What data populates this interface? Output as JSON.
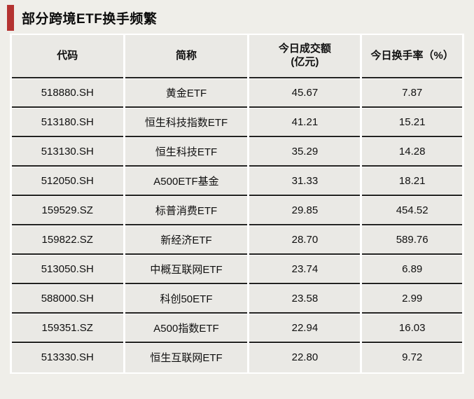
{
  "title": "部分跨境ETF换手频繁",
  "colors": {
    "accent_bar": "#b43331",
    "page_bg": "#efeee9",
    "cell_bg": "#eae9e5",
    "row_rule": "#232321",
    "gap": "#ffffff"
  },
  "table": {
    "columns": [
      {
        "label": "代码",
        "sub": ""
      },
      {
        "label": "简称",
        "sub": ""
      },
      {
        "label": "今日成交额",
        "sub": "(亿元)"
      },
      {
        "label": "今日换手率（%）",
        "sub": ""
      }
    ],
    "rows": [
      {
        "code": "518880.SH",
        "name": "黄金ETF",
        "turnover": "45.67",
        "rate": "7.87"
      },
      {
        "code": "513180.SH",
        "name": "恒生科技指数ETF",
        "turnover": "41.21",
        "rate": "15.21"
      },
      {
        "code": "513130.SH",
        "name": "恒生科技ETF",
        "turnover": "35.29",
        "rate": "14.28"
      },
      {
        "code": "512050.SH",
        "name": "A500ETF基金",
        "turnover": "31.33",
        "rate": "18.21"
      },
      {
        "code": "159529.SZ",
        "name": "标普消费ETF",
        "turnover": "29.85",
        "rate": "454.52"
      },
      {
        "code": "159822.SZ",
        "name": "新经济ETF",
        "turnover": "28.70",
        "rate": "589.76"
      },
      {
        "code": "513050.SH",
        "name": "中概互联网ETF",
        "turnover": "23.74",
        "rate": "6.89"
      },
      {
        "code": "588000.SH",
        "name": "科创50ETF",
        "turnover": "23.58",
        "rate": "2.99"
      },
      {
        "code": "159351.SZ",
        "name": "A500指数ETF",
        "turnover": "22.94",
        "rate": "16.03"
      },
      {
        "code": "513330.SH",
        "name": "恒生互联网ETF",
        "turnover": "22.80",
        "rate": "9.72"
      }
    ]
  },
  "chart_data": {
    "type": "table",
    "title": "部分跨境ETF换手频繁",
    "columns": [
      "代码",
      "简称",
      "今日成交额(亿元)",
      "今日换手率（%）"
    ],
    "rows": [
      [
        "518880.SH",
        "黄金ETF",
        45.67,
        7.87
      ],
      [
        "513180.SH",
        "恒生科技指数ETF",
        41.21,
        15.21
      ],
      [
        "513130.SH",
        "恒生科技ETF",
        35.29,
        14.28
      ],
      [
        "512050.SH",
        "A500ETF基金",
        31.33,
        18.21
      ],
      [
        "159529.SZ",
        "标普消费ETF",
        29.85,
        454.52
      ],
      [
        "159822.SZ",
        "新经济ETF",
        28.7,
        589.76
      ],
      [
        "513050.SH",
        "中概互联网ETF",
        23.74,
        6.89
      ],
      [
        "588000.SH",
        "科创50ETF",
        23.58,
        2.99
      ],
      [
        "159351.SZ",
        "A500指数ETF",
        22.94,
        16.03
      ],
      [
        "513330.SH",
        "恒生互联网ETF",
        22.8,
        9.72
      ]
    ]
  }
}
